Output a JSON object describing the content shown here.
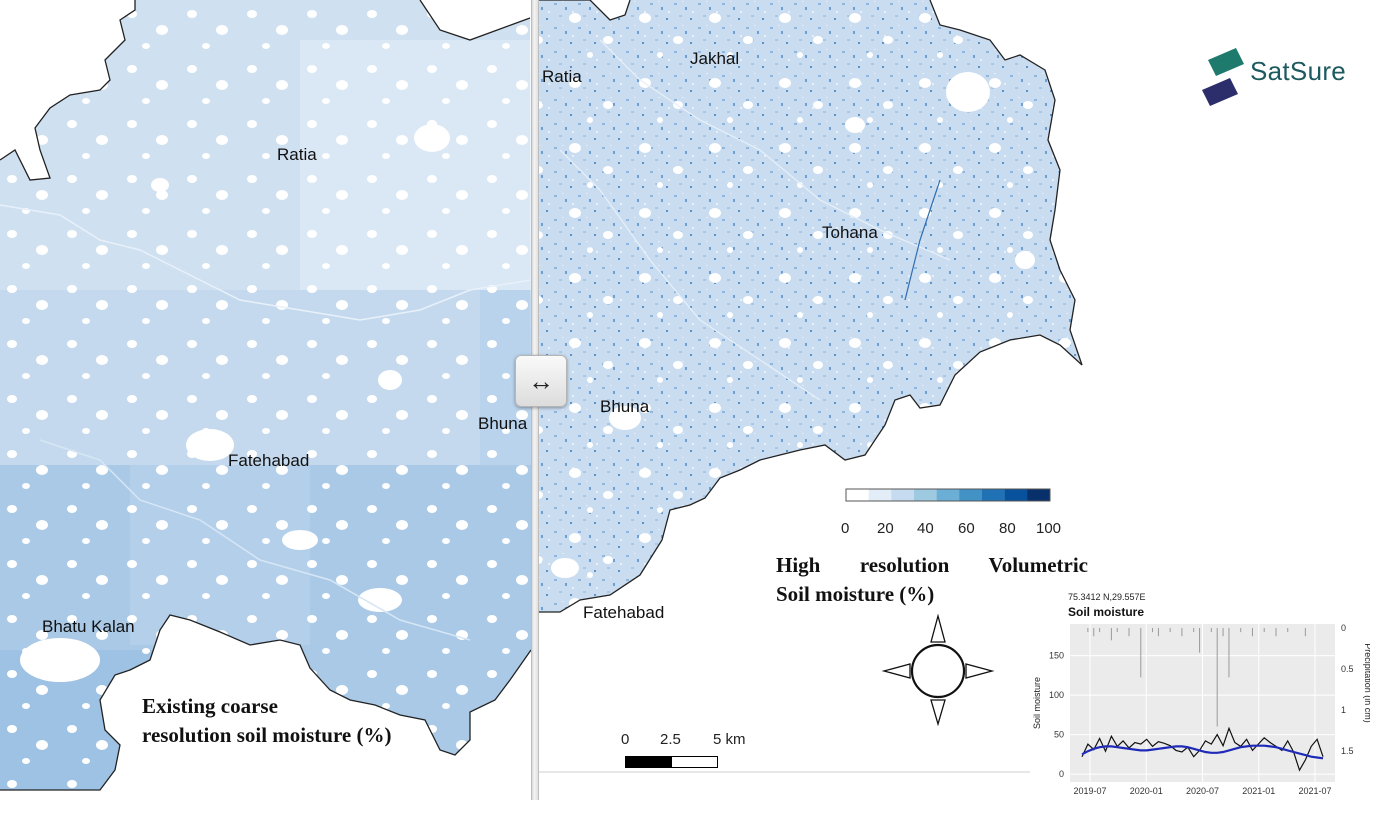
{
  "brand": {
    "name": "SatSure",
    "accent": "#1d5a5f",
    "mark_top_color": "#1f7a6e",
    "mark_bottom_color": "#2c2e6b"
  },
  "left_panel": {
    "places": [
      "Ratia",
      "Fatehabad",
      "Bhuna",
      "Bhatu Kalan"
    ],
    "caption_line1": "Existing coarse",
    "caption_line2": "resolution soil moisture (%)"
  },
  "right_panel": {
    "places": [
      "Jakhal",
      "Ratia",
      "Tohana",
      "Bhuna",
      "Fatehabad"
    ],
    "caption_line1": "High resolution Volumetric",
    "caption_line2": "Soil moisture (%)"
  },
  "legend": {
    "ticks": [
      "0",
      "20",
      "40",
      "60",
      "80",
      "100"
    ],
    "colors": [
      "#ffffff",
      "#e3edf8",
      "#c6dbef",
      "#9ecae1",
      "#6baed6",
      "#4292c6",
      "#2171b5",
      "#08519c",
      "#08306b"
    ]
  },
  "scale_bar": {
    "labels": [
      "0",
      "2.5",
      "5 km"
    ]
  },
  "compass": {
    "icon": "compass-rose-icon"
  },
  "divider_handle": {
    "icon": "left-right-arrow-icon",
    "glyph": "↔"
  },
  "chart_data": {
    "type": "line",
    "coordinate": "75.3412 N,29.557E",
    "title": "Soil moisture",
    "ylabel": "Soil moisture",
    "y2label": "Precipitation (in cm)",
    "x_ticks": [
      "2019-07",
      "2020-01",
      "2020-07",
      "2021-01",
      "2021-07"
    ],
    "y_ticks": [
      "0",
      "50",
      "100",
      "150"
    ],
    "y2_ticks": [
      "0",
      "0.5",
      "1",
      "1.5"
    ],
    "ylim": [
      -10,
      190
    ],
    "series": [
      {
        "values": [
          22,
          38,
          31,
          45,
          29,
          48,
          35,
          42,
          33,
          40,
          38,
          44,
          35,
          41,
          39,
          36,
          30,
          28,
          34,
          22,
          30,
          42,
          38,
          50,
          36,
          58,
          40,
          35,
          44,
          30,
          38,
          46,
          40,
          35,
          30,
          42,
          28,
          5,
          18,
          35,
          44,
          22
        ]
      },
      {
        "values": [
          25,
          29,
          32,
          34,
          35,
          35,
          34,
          33,
          32,
          31,
          30,
          30,
          31,
          32,
          33,
          34,
          35,
          35,
          34,
          32,
          30,
          28,
          27,
          27,
          28,
          30,
          32,
          34,
          35,
          36,
          36,
          36,
          35,
          34,
          32,
          30,
          28,
          26,
          24,
          22,
          21,
          20
        ]
      },
      {
        "values": [
          0,
          0.05,
          0.1,
          0.05,
          0,
          0.15,
          0.05,
          0,
          0.1,
          0,
          0.6,
          0,
          0.05,
          0.1,
          0,
          0.05,
          0,
          0.1,
          0,
          0.05,
          0.3,
          0,
          0.05,
          1.2,
          0.1,
          0.6,
          0,
          0.05,
          0,
          0.1,
          0,
          0.05,
          0,
          0.1,
          0,
          0.05,
          0,
          0,
          0.1,
          0,
          0,
          0
        ]
      }
    ],
    "colors": {
      "moisture": "#111111",
      "trend": "#1f2bb8",
      "precip": "#9a9a9a"
    }
  }
}
